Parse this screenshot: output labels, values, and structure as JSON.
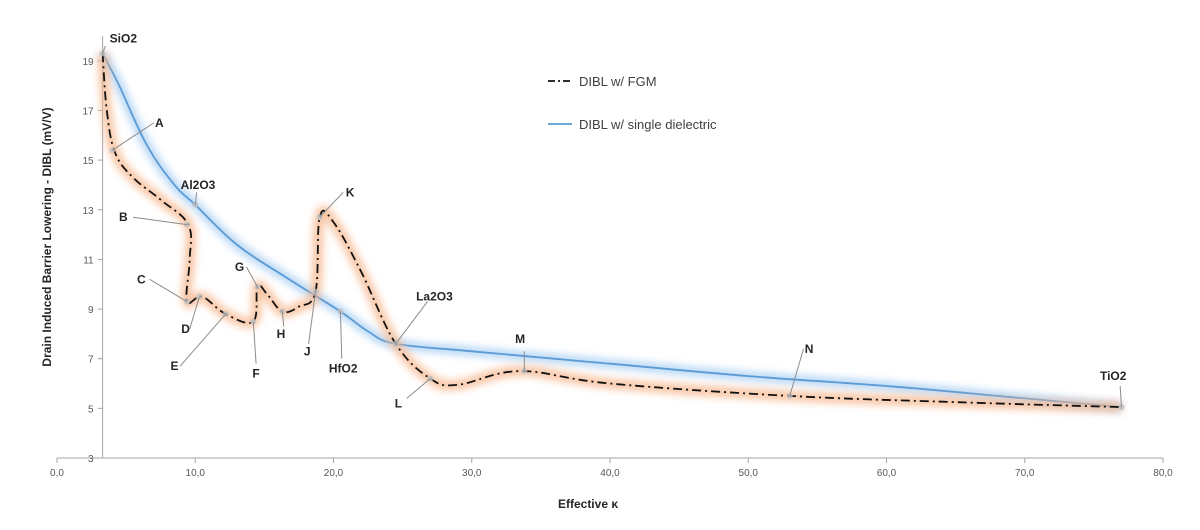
{
  "chart_data": {
    "type": "line",
    "xlabel": "Effective κ",
    "ylabel": "Drain Induced Barrier Lowering  - DIBL  (mV/V)",
    "xlim": [
      0,
      80
    ],
    "ylim": [
      3,
      20
    ],
    "x_ticks": [
      0,
      10,
      20,
      30,
      40,
      50,
      60,
      70,
      80
    ],
    "x_tick_labels": [
      "0,0",
      "10,0",
      "20,0",
      "30,0",
      "40,0",
      "50,0",
      "60,0",
      "70,0",
      "80,0"
    ],
    "y_ticks": [
      3,
      5,
      7,
      9,
      11,
      13,
      15,
      17,
      19
    ],
    "y_tick_labels": [
      "3",
      "5",
      "7",
      "9",
      "11",
      "13",
      "15",
      "17",
      "19"
    ],
    "grid": false,
    "legend_position": "top-right",
    "colors": {
      "fgm": "#111111",
      "fgm_glow": "#f7b58a",
      "single": "#5b9bd5",
      "single_glow": "#9cc8f2"
    },
    "series": [
      {
        "name": "DIBL w/ FGM",
        "style": "dash-dot",
        "points": [
          [
            3.3,
            19.3
          ],
          [
            3.6,
            17.0
          ],
          [
            4.2,
            15.3
          ],
          [
            5.5,
            14.3
          ],
          [
            7.5,
            13.4
          ],
          [
            9.5,
            12.4
          ],
          [
            9.6,
            11.0
          ],
          [
            9.4,
            9.3
          ],
          [
            10.5,
            9.5
          ],
          [
            12.2,
            8.8
          ],
          [
            14.2,
            8.5
          ],
          [
            14.5,
            9.9
          ],
          [
            15.2,
            9.6
          ],
          [
            16.3,
            8.9
          ],
          [
            17.5,
            9.1
          ],
          [
            18.7,
            9.7
          ],
          [
            19.0,
            12.7
          ],
          [
            20.0,
            12.5
          ],
          [
            22.0,
            10.5
          ],
          [
            24.5,
            7.6
          ],
          [
            27.0,
            6.2
          ],
          [
            29.0,
            5.95
          ],
          [
            33.5,
            6.5
          ],
          [
            40.0,
            6.0
          ],
          [
            53.0,
            5.5
          ],
          [
            65.0,
            5.25
          ],
          [
            77.0,
            5.05
          ]
        ]
      },
      {
        "name": "DIBL w/ single dielectric",
        "style": "solid",
        "points": [
          [
            3.3,
            19.3
          ],
          [
            4.5,
            18.0
          ],
          [
            6.5,
            15.6
          ],
          [
            8.5,
            14.0
          ],
          [
            10.0,
            13.2
          ],
          [
            13.0,
            11.6
          ],
          [
            16.5,
            10.3
          ],
          [
            20.5,
            8.9
          ],
          [
            22.5,
            8.1
          ],
          [
            24.5,
            7.6
          ],
          [
            30.0,
            7.3
          ],
          [
            40.0,
            6.8
          ],
          [
            50.0,
            6.3
          ],
          [
            60.0,
            5.9
          ],
          [
            70.0,
            5.4
          ],
          [
            77.0,
            5.05
          ]
        ]
      }
    ],
    "annotations": [
      {
        "label": "SiO2",
        "x": 3.3,
        "y": 19.3,
        "lx": 4.8,
        "ly": 19.9,
        "ax": 3.5,
        "ay": 19.6
      },
      {
        "label": "A",
        "x": 4.0,
        "y": 15.4,
        "lx": 7.4,
        "ly": 16.5,
        "ax": 7.0,
        "ay": 16.5
      },
      {
        "label": "Al2O3",
        "x": 10.0,
        "y": 13.2,
        "lx": 10.2,
        "ly": 14.0,
        "ax": 10.1,
        "ay": 13.7
      },
      {
        "label": "B",
        "x": 9.4,
        "y": 12.4,
        "lx": 4.8,
        "ly": 12.7,
        "ax": 5.5,
        "ay": 12.7
      },
      {
        "label": "C",
        "x": 9.4,
        "y": 9.3,
        "lx": 6.1,
        "ly": 10.2,
        "ax": 6.7,
        "ay": 10.2
      },
      {
        "label": "D",
        "x": 10.3,
        "y": 9.5,
        "lx": 9.3,
        "ly": 8.2,
        "ax": 9.6,
        "ay": 8.2
      },
      {
        "label": "E",
        "x": 12.2,
        "y": 8.8,
        "lx": 8.5,
        "ly": 6.7,
        "ax": 8.9,
        "ay": 6.7
      },
      {
        "label": "F",
        "x": 14.2,
        "y": 8.5,
        "lx": 14.4,
        "ly": 6.4,
        "ax": 14.4,
        "ay": 6.8
      },
      {
        "label": "G",
        "x": 14.5,
        "y": 9.9,
        "lx": 13.2,
        "ly": 10.7,
        "ax": 13.7,
        "ay": 10.7
      },
      {
        "label": "H",
        "x": 16.3,
        "y": 8.9,
        "lx": 16.2,
        "ly": 8.0,
        "ax": 16.4,
        "ay": 8.3
      },
      {
        "label": "J",
        "x": 18.7,
        "y": 9.7,
        "lx": 18.1,
        "ly": 7.3,
        "ax": 18.2,
        "ay": 7.6
      },
      {
        "label": "K",
        "x": 19.0,
        "y": 12.7,
        "lx": 21.2,
        "ly": 13.7,
        "ax": 20.7,
        "ay": 13.7
      },
      {
        "label": "HfO2",
        "x": 20.5,
        "y": 8.9,
        "lx": 20.7,
        "ly": 6.6,
        "ax": 20.6,
        "ay": 7.0
      },
      {
        "label": "La2O3",
        "x": 24.5,
        "y": 7.6,
        "lx": 27.3,
        "ly": 9.5,
        "ax": 26.8,
        "ay": 9.3
      },
      {
        "label": "L",
        "x": 27.0,
        "y": 6.2,
        "lx": 24.7,
        "ly": 5.2,
        "ax": 25.3,
        "ay": 5.4
      },
      {
        "label": "M",
        "x": 33.8,
        "y": 6.5,
        "lx": 33.5,
        "ly": 7.8,
        "ax": 33.8,
        "ay": 7.3
      },
      {
        "label": "N",
        "x": 53.0,
        "y": 5.5,
        "lx": 54.4,
        "ly": 7.4,
        "ax": 54.0,
        "ay": 7.4
      },
      {
        "label": "TiO2",
        "x": 77.0,
        "y": 5.05,
        "lx": 76.4,
        "ly": 6.3,
        "ax": 76.9,
        "ay": 5.9
      }
    ],
    "legend": [
      {
        "name": "DIBL w/ FGM",
        "style": "dash-dot"
      },
      {
        "name": "DIBL w/ single dielectric",
        "style": "solid"
      }
    ]
  }
}
